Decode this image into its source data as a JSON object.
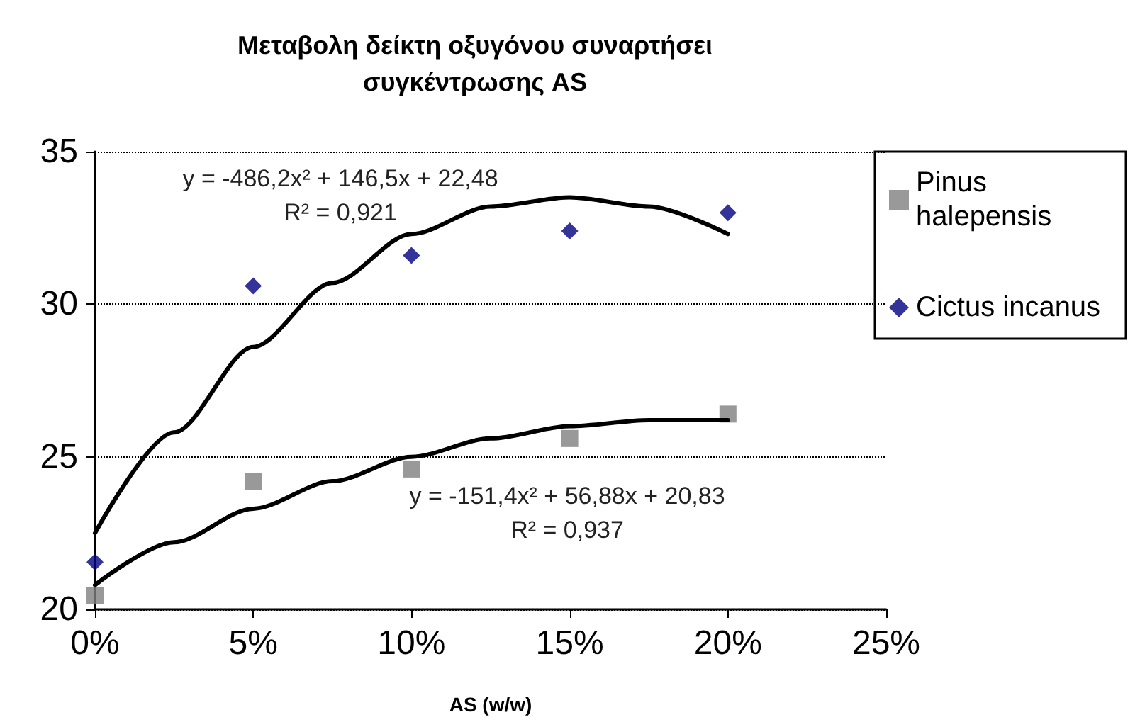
{
  "chart_data": {
    "type": "scatter",
    "title": "Μεταβολη δείκτη οξυγόνου συναρτήσει\nσυγκέντρωσης AS",
    "xlabel": "AS (w/w)",
    "x": [
      0,
      0.05,
      0.1,
      0.15,
      0.2
    ],
    "series": [
      {
        "name": "Pinus halepensis",
        "color": "#808080",
        "marker": "square",
        "values": [
          20.45,
          24.2,
          24.6,
          25.6,
          26.4
        ]
      },
      {
        "name": "Cictus incanus",
        "color": "#000080",
        "marker": "diamond",
        "values": [
          21.55,
          30.6,
          31.6,
          32.4,
          33.0
        ]
      },
      {
        "type": "line",
        "color": "#000000",
        "marker": "none",
        "x": [
          0,
          0.025,
          0.05,
          0.075,
          0.1,
          0.125,
          0.15,
          0.175,
          0.2
        ],
        "values": [
          20.8,
          22.2,
          23.3,
          24.2,
          25.0,
          25.6,
          26.0,
          26.2,
          26.2
        ]
      },
      {
        "type": "line",
        "color": "#000000",
        "marker": "none",
        "x": [
          0,
          0.025,
          0.05,
          0.075,
          0.1,
          0.125,
          0.15,
          0.175,
          0.2
        ],
        "values": [
          22.5,
          25.8,
          28.6,
          30.7,
          32.3,
          33.2,
          33.5,
          33.2,
          32.3
        ]
      }
    ],
    "xlim": [
      0,
      0.25
    ],
    "xticks": [
      {
        "value": 0,
        "label": "0%"
      },
      {
        "value": 0.05,
        "label": "5%"
      },
      {
        "value": 0.1,
        "label": "10%"
      },
      {
        "value": 0.15,
        "label": "15%"
      },
      {
        "value": 0.2,
        "label": "20%"
      },
      {
        "value": 0.25,
        "label": "25%"
      }
    ],
    "ylim": [
      20,
      35
    ],
    "yticks": [
      20,
      25,
      30,
      35
    ],
    "grid": "y",
    "legend": "right",
    "annotations": [
      "y = -486,2x² + 146,5x + 22,48",
      "R² = 0,921",
      "y = -151,4x² + 56,88x + 20,83",
      "R² = 0,937"
    ]
  }
}
